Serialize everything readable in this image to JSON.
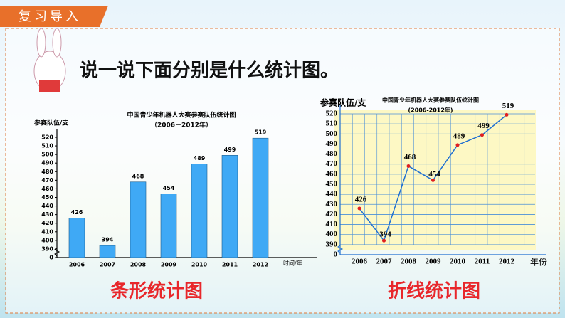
{
  "header": {
    "tag": "复习导入",
    "question": "说一说下面分别是什么统计图。"
  },
  "chart_data": [
    {
      "type": "bar",
      "title": "中国青少年机器人大赛参赛队伍统计图",
      "subtitle": "（2006－2012年）",
      "y_label": "参赛队伍/支",
      "x_label": "时间/年",
      "caption": "条形统计图",
      "categories": [
        "2006",
        "2007",
        "2008",
        "2009",
        "2010",
        "2011",
        "2012"
      ],
      "values": [
        426,
        394,
        468,
        454,
        489,
        499,
        519
      ],
      "color": "#3fa9f5",
      "ylim": [
        0,
        520
      ],
      "yticks": [
        0,
        390,
        400,
        410,
        420,
        430,
        440,
        450,
        460,
        470,
        480,
        490,
        500,
        510,
        520
      ],
      "axis_break": true,
      "grid": false
    },
    {
      "type": "line",
      "title": "中国青少年机器人大赛参赛队伍统计图",
      "subtitle": "(2006-2012年)",
      "y_label": "参赛队伍/支",
      "x_label": "年份",
      "caption": "折线统计图",
      "categories": [
        "2006",
        "2007",
        "2008",
        "2009",
        "2010",
        "2011",
        "2012"
      ],
      "values": [
        426,
        394,
        468,
        454,
        489,
        499,
        519
      ],
      "color": "#1f6fd1",
      "marker_color": "#e02020",
      "ylim": [
        0,
        520
      ],
      "yticks": [
        0,
        390,
        400,
        410,
        420,
        430,
        440,
        450,
        460,
        470,
        480,
        490,
        500,
        510,
        520
      ],
      "axis_break": true,
      "grid": true
    }
  ]
}
